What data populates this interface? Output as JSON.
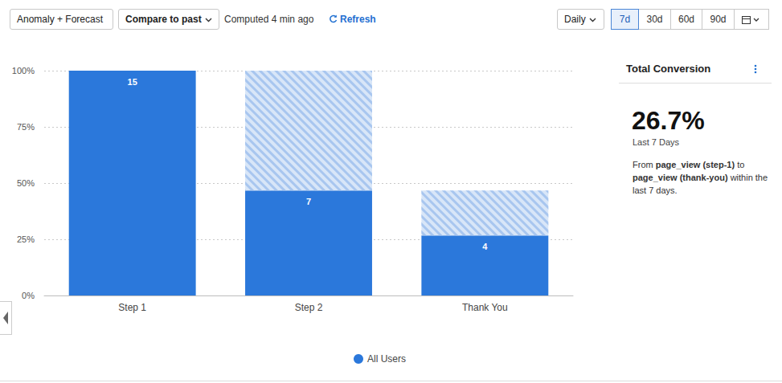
{
  "toolbar": {
    "buttons": [
      "Anomaly + Forecast",
      "Compare to past"
    ],
    "status": "Computed 4 min ago",
    "refresh": "Refresh",
    "interval": "Daily",
    "ranges": [
      "7d",
      "30d",
      "60d",
      "90d"
    ],
    "selected_range": "7d"
  },
  "chart_data": {
    "type": "bar",
    "stacked": true,
    "grid": true,
    "legend": "bottom",
    "categories": [
      "Step 1",
      "Step 2",
      "Thank You"
    ],
    "series": [
      {
        "name": "All Users",
        "color": "#2b78db",
        "values": [
          100,
          46.7,
          26.7
        ],
        "counts": [
          15,
          7,
          4
        ]
      }
    ],
    "dropoff": [
      null,
      53.3,
      20
    ],
    "ylim": [
      0,
      100
    ],
    "yticks": [
      {
        "value": 0,
        "label": "0%"
      },
      {
        "value": 25,
        "label": "25%"
      },
      {
        "value": 50,
        "label": "50%"
      },
      {
        "value": 75,
        "label": "75%"
      },
      {
        "value": 100,
        "label": "100%"
      }
    ]
  },
  "summary": {
    "title": "Total Conversion",
    "value": "26.7%",
    "period": "Last 7 Days",
    "description": [
      {
        "text": "From "
      },
      {
        "text": "page_view (step-1)",
        "bold": true
      },
      {
        "text": " to "
      },
      {
        "text": "page_view (thank-you)",
        "bold": true
      },
      {
        "text": " within the last 7 days."
      }
    ]
  }
}
